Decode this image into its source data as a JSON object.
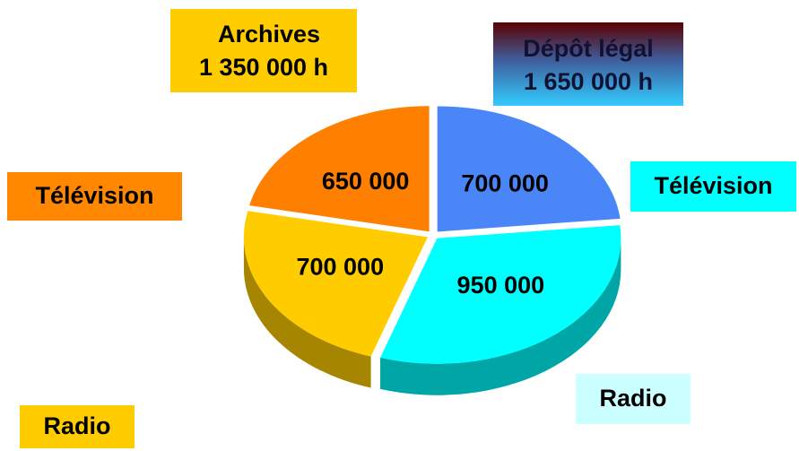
{
  "chart_data": {
    "type": "pie",
    "categories": [
      "Télévision",
      "Radio",
      "Radio",
      "Télévision"
    ],
    "values": [
      700000,
      950000,
      700000,
      650000
    ],
    "value_labels": [
      "700 000",
      "950 000",
      "700 000",
      "650 000"
    ],
    "colors": [
      "#4a86f7",
      "#00ffff",
      "#ffcc00",
      "#ff7f00"
    ],
    "label_colors": [
      "#00ffff",
      "#ccffff",
      "#ffcc00",
      "#ff8800"
    ],
    "annotations": [
      {
        "name": "Archives",
        "total": "1 350 000 h"
      },
      {
        "name": "Dépôt légal",
        "total": "1 650 000 h"
      }
    ]
  }
}
